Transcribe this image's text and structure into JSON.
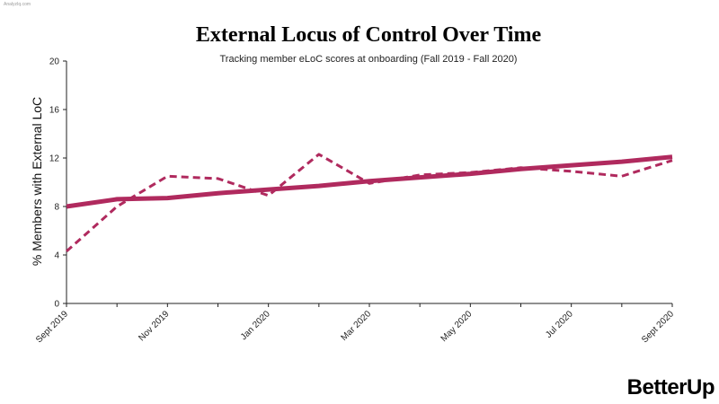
{
  "watermark": "AnalyzIq.com",
  "brand": "BetterUp",
  "colors": {
    "series": "#b02a5e",
    "axis": "#222222"
  },
  "chart_data": {
    "type": "line",
    "title": "External Locus of Control Over Time",
    "subtitle": "Tracking member eLoC scores at onboarding (Fall 2019 - Fall 2020)",
    "xlabel": "",
    "ylabel": "% Members with External LoC",
    "ylim": [
      0,
      20
    ],
    "yticks": [
      0,
      4,
      8,
      12,
      16,
      20
    ],
    "x": [
      "Sept 2019",
      "Oct 2019",
      "Nov 2019",
      "Dec 2019",
      "Jan 2020",
      "Feb 2020",
      "Mar 2020",
      "Apr 2020",
      "May 2020",
      "Jun 2020",
      "Jul 2020",
      "Aug 2020",
      "Sept 2020"
    ],
    "x_tick_labels": [
      "Sept 2019",
      "Nov 2019",
      "Jan 2020",
      "Mar 2020",
      "May 2020",
      "Jul 2020",
      "Sept 2020"
    ],
    "grid": false,
    "series": [
      {
        "style": "dashed",
        "values": [
          4.3,
          8.0,
          10.5,
          10.3,
          8.9,
          12.3,
          9.9,
          10.6,
          10.8,
          11.2,
          10.9,
          10.5,
          11.8
        ]
      },
      {
        "style": "solid",
        "values": [
          8.0,
          8.6,
          8.7,
          9.1,
          9.4,
          9.7,
          10.1,
          10.4,
          10.7,
          11.1,
          11.4,
          11.7,
          12.1
        ]
      }
    ]
  }
}
